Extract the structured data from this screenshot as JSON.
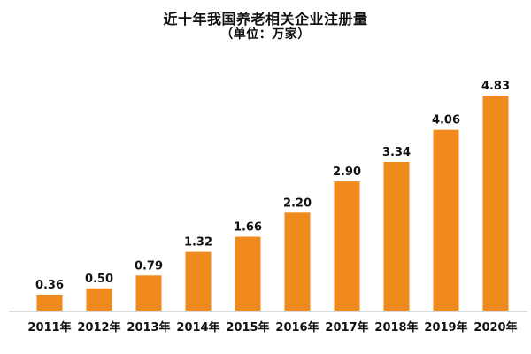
{
  "chart_data": {
    "type": "bar",
    "title": "近十年我国养老相关企业注册量",
    "subtitle": "（单位：万家）",
    "categories": [
      "2011年",
      "2012年",
      "2013年",
      "2014年",
      "2015年",
      "2016年",
      "2017年",
      "2018年",
      "2019年",
      "2020年"
    ],
    "values": [
      0.36,
      0.5,
      0.79,
      1.32,
      1.66,
      2.2,
      2.9,
      3.34,
      4.06,
      4.83
    ],
    "value_labels": [
      "0.36",
      "0.50",
      "0.79",
      "1.32",
      "1.66",
      "2.20",
      "2.90",
      "3.34",
      "4.06",
      "4.83"
    ],
    "xlabel": "",
    "ylabel": "",
    "ylim": [
      0,
      4.83
    ],
    "grid": false,
    "legend": "none",
    "bar_color": "#F08A1F"
  }
}
